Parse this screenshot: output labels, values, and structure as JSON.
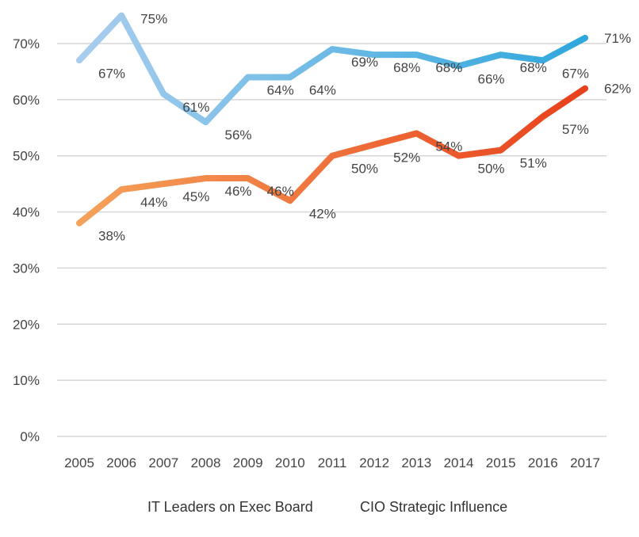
{
  "chart_data": {
    "type": "line",
    "title": "",
    "xlabel": "",
    "ylabel": "",
    "x": [
      "2005",
      "2006",
      "2007",
      "2008",
      "2009",
      "2010",
      "2011",
      "2012",
      "2013",
      "2014",
      "2015",
      "2016",
      "2017"
    ],
    "ylim": [
      0,
      70
    ],
    "yticks": [
      "0%",
      "10%",
      "20%",
      "30%",
      "40%",
      "50%",
      "60%",
      "70%"
    ],
    "grid": true,
    "legend_position": "bottom",
    "series": [
      {
        "name": "IT Leaders on Exec Board",
        "values": [
          38,
          44,
          45,
          46,
          46,
          42,
          50,
          52,
          54,
          50,
          51,
          57,
          62
        ],
        "labels": [
          "38%",
          "44%",
          "45%",
          "46%",
          "46%",
          "42%",
          "50%",
          "52%",
          "54%",
          "50%",
          "51%",
          "57%",
          "62%"
        ],
        "color_start": "#f5a25a",
        "color_end": "#e8401c"
      },
      {
        "name": "CIO Strategic Influence",
        "values": [
          67,
          75,
          61,
          56,
          64,
          64,
          69,
          68,
          68,
          66,
          68,
          67,
          71
        ],
        "labels": [
          "67%",
          "75%",
          "61%",
          "56%",
          "64%",
          "64%",
          "69%",
          "68%",
          "68%",
          "66%",
          "68%",
          "67%",
          "71%"
        ],
        "color_start": "#a9cdee",
        "color_end": "#2fa7dc"
      }
    ]
  }
}
